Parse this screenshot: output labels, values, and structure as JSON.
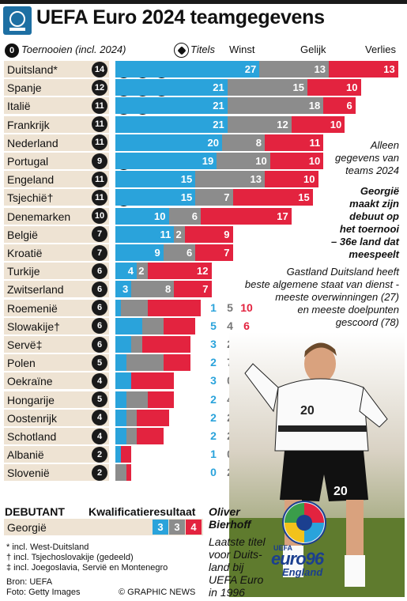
{
  "title": "UEFA Euro 2024 teamgegevens",
  "header": {
    "tournaments_badge": "0",
    "tournaments_label": "Toernooien (incl. 2024)",
    "titles_label": "Titels",
    "win_label": "Winst",
    "draw_label": "Gelijk",
    "loss_label": "Verlies"
  },
  "colors": {
    "win": "#2aa3db",
    "draw": "#8c8c8c",
    "loss": "#e3233f",
    "row_bg": "#eee3d3"
  },
  "chart_data": {
    "type": "bar",
    "stacked": true,
    "categories": [
      "Duitsland*",
      "Spanje",
      "Italië",
      "Frankrijk",
      "Nederland",
      "Portugal",
      "Engeland",
      "Tsjechië†",
      "Denemarken",
      "België",
      "Kroatië",
      "Turkije",
      "Zwitserland",
      "Roemenië",
      "Slowakije†",
      "Servë‡",
      "Polen",
      "Oekraïne",
      "Hongarije",
      "Oostenrijk",
      "Schotland",
      "Albanië",
      "Slovenië"
    ],
    "tournaments": [
      14,
      12,
      11,
      11,
      11,
      9,
      11,
      11,
      10,
      7,
      7,
      6,
      6,
      6,
      6,
      6,
      5,
      4,
      5,
      4,
      4,
      2,
      2
    ],
    "titles": [
      3,
      3,
      2,
      2,
      1,
      1,
      0,
      1,
      1,
      0,
      0,
      0,
      0,
      0,
      0,
      0,
      0,
      0,
      0,
      0,
      0,
      0,
      0
    ],
    "series": [
      {
        "name": "Winst",
        "values": [
          27,
          21,
          21,
          21,
          20,
          19,
          15,
          15,
          10,
          11,
          9,
          4,
          3,
          1,
          5,
          3,
          2,
          3,
          2,
          2,
          2,
          1,
          0
        ]
      },
      {
        "name": "Gelijk",
        "values": [
          13,
          15,
          18,
          12,
          8,
          10,
          13,
          7,
          6,
          2,
          6,
          2,
          8,
          5,
          4,
          2,
          7,
          0,
          4,
          2,
          2,
          0,
          2
        ]
      },
      {
        "name": "Verlies",
        "values": [
          13,
          10,
          6,
          10,
          11,
          10,
          10,
          15,
          17,
          9,
          7,
          12,
          7,
          10,
          6,
          9,
          5,
          8,
          5,
          6,
          5,
          2,
          1
        ]
      }
    ],
    "labels_inside_bars_through_row": 12
  },
  "notes": {
    "only_2024": [
      "Alleen",
      "gegevens van",
      "teams 2024"
    ],
    "georgia": [
      "Georgië",
      "maakt zijn",
      "debuut op",
      "het toernooi",
      "– 36e land dat",
      "meespeelt"
    ],
    "germany": [
      "Gastland Duitsland heeft",
      "beste algemene staat van dienst -",
      "meeste overwinningen (27)",
      "en meeste doelpunten",
      "gescoord (78)"
    ]
  },
  "debutant": {
    "label": "DEBUTANT",
    "qual_label": "Kwalificatieresultaat",
    "country": "Georgië",
    "win": "3",
    "draw": "3",
    "loss": "4"
  },
  "bierhoff": {
    "name": [
      "Oliver",
      "Bierhoff"
    ],
    "caption": [
      "Laatste titel",
      "voor Duits-",
      "land bij",
      "UEFA Euro",
      "in 1996"
    ]
  },
  "footnotes": [
    "* incl. West-Duitsland",
    "† incl. Tsjechoslovakije (gedeeld)",
    "‡ incl. Joegoslavia, Servië en Montenegro"
  ],
  "source": "Bron: UEFA",
  "photo_credit": "Foto: Getty Images",
  "copyright": "© GRAPHIC NEWS",
  "euro_logo": {
    "small": "UEFA",
    "main": "euro96",
    "sub": "England"
  }
}
